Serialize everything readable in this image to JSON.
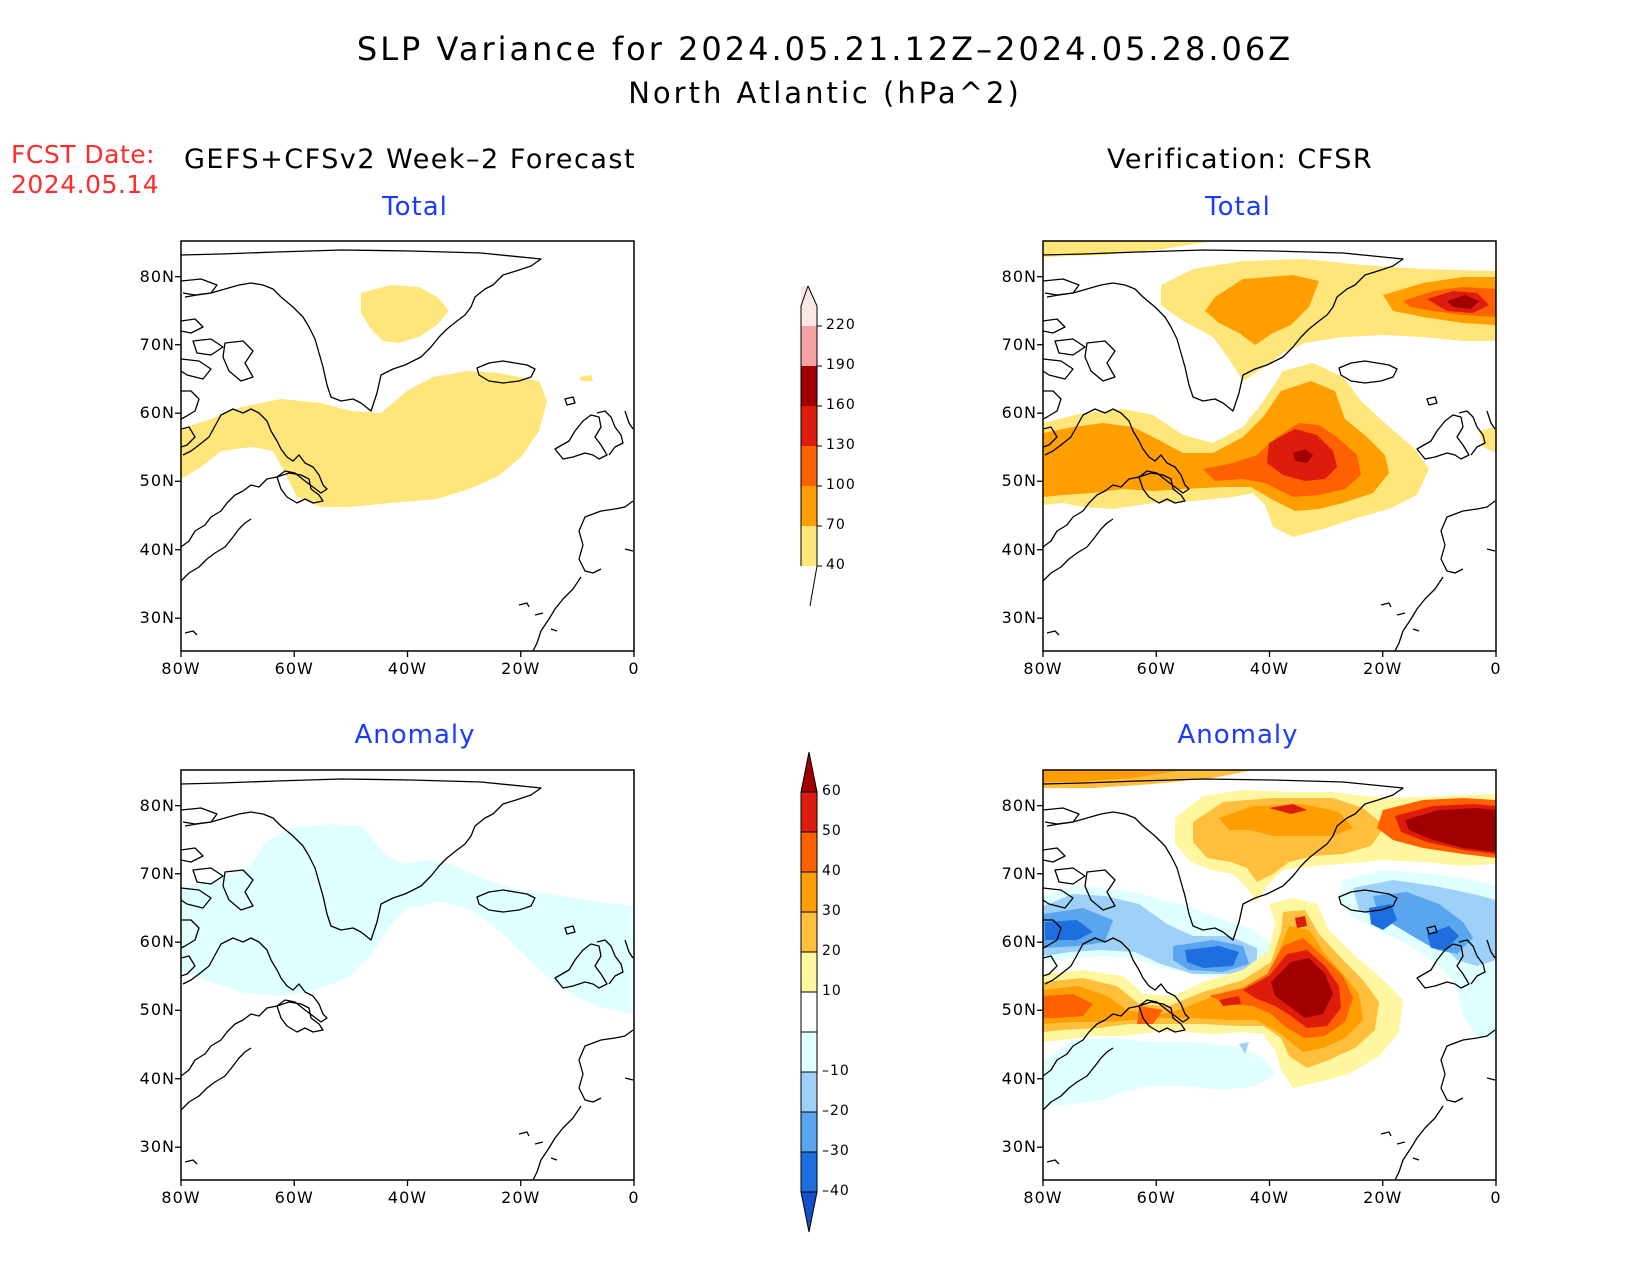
{
  "title": {
    "line1": "SLP Variance for 2024.05.21.12Z–2024.05.28.06Z",
    "line2": "North Atlantic (hPa^2)"
  },
  "fcst": {
    "label": "FCST Date:",
    "date": "2024.05.14"
  },
  "left_header": "GEFS+CFSv2 Week–2 Forecast",
  "right_header": "Verification: CFSR",
  "panels": {
    "fcst_total": "Total",
    "fcst_anomaly": "Anomaly",
    "verif_total": "Total",
    "verif_anomaly": "Anomaly"
  },
  "axes": {
    "lat_labels": [
      "80N",
      "70N",
      "60N",
      "50N",
      "40N",
      "30N"
    ],
    "lon_labels": [
      "80W",
      "60W",
      "40W",
      "20W",
      "0"
    ]
  },
  "colorbar_total": {
    "labels": [
      "220",
      "190",
      "160",
      "130",
      "100",
      "70",
      "40"
    ],
    "colors": [
      "#fde6e6",
      "#f4a2a2",
      "#a00000",
      "#dd1c0e",
      "#ff6000",
      "#ff9e00",
      "#ffe67a"
    ]
  },
  "colorbar_anomaly": {
    "labels": [
      "60",
      "50",
      "40",
      "30",
      "20",
      "10",
      "–10",
      "–20",
      "–30",
      "–40"
    ],
    "colors": [
      "#a00000",
      "#dd1c0e",
      "#ff6000",
      "#ff9e00",
      "#ffbe3c",
      "#fff7a0",
      "#ffffff",
      "#e0ffff",
      "#9ed0f8",
      "#5aa6ee",
      "#1e6ee0",
      "#1450c8"
    ]
  },
  "palette": {
    "yellow": "#ffe67a",
    "orange": "#ff9e00",
    "dark_orange": "#ff6000",
    "red": "#dd1c0e",
    "dark_red": "#a00000",
    "light_yellow": "#fff7a0",
    "gold": "#ffbe3c",
    "cyan_light": "#e0ffff",
    "blue_light": "#9ed0f8",
    "blue_mid": "#5aa6ee",
    "blue_dark": "#1e6ee0",
    "title_blue": "#1a3cff",
    "fcst_red": "#ff2a2a"
  }
}
